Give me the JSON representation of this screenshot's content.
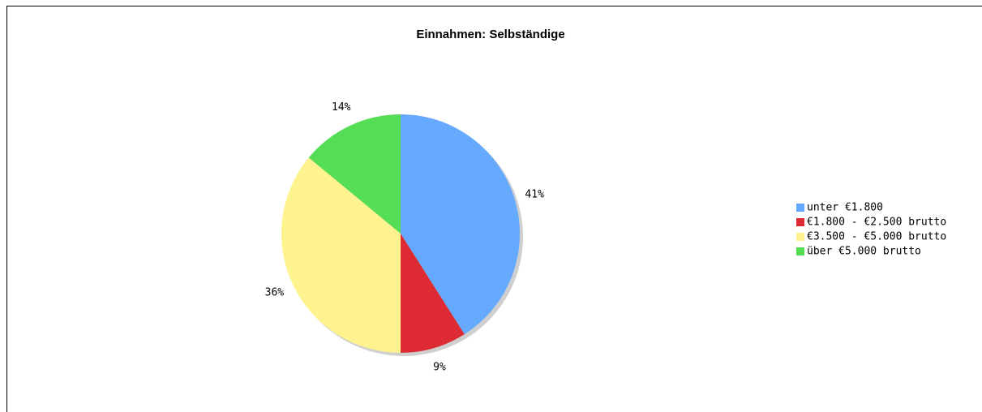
{
  "chart_data": {
    "type": "pie",
    "title": "Einnahmen: Selbständige",
    "categories": [
      "unter €1.800",
      "€1.800 - €2.500 brutto",
      "€3.500 - €5.000 brutto",
      "über €5.000 brutto"
    ],
    "values": [
      41,
      9,
      36,
      14
    ],
    "value_labels": [
      "41%",
      "9%",
      "36%",
      "14%"
    ],
    "colors": [
      "#66aaff",
      "#dd2a33",
      "#fff38f",
      "#55dd55"
    ],
    "legend": "right"
  }
}
